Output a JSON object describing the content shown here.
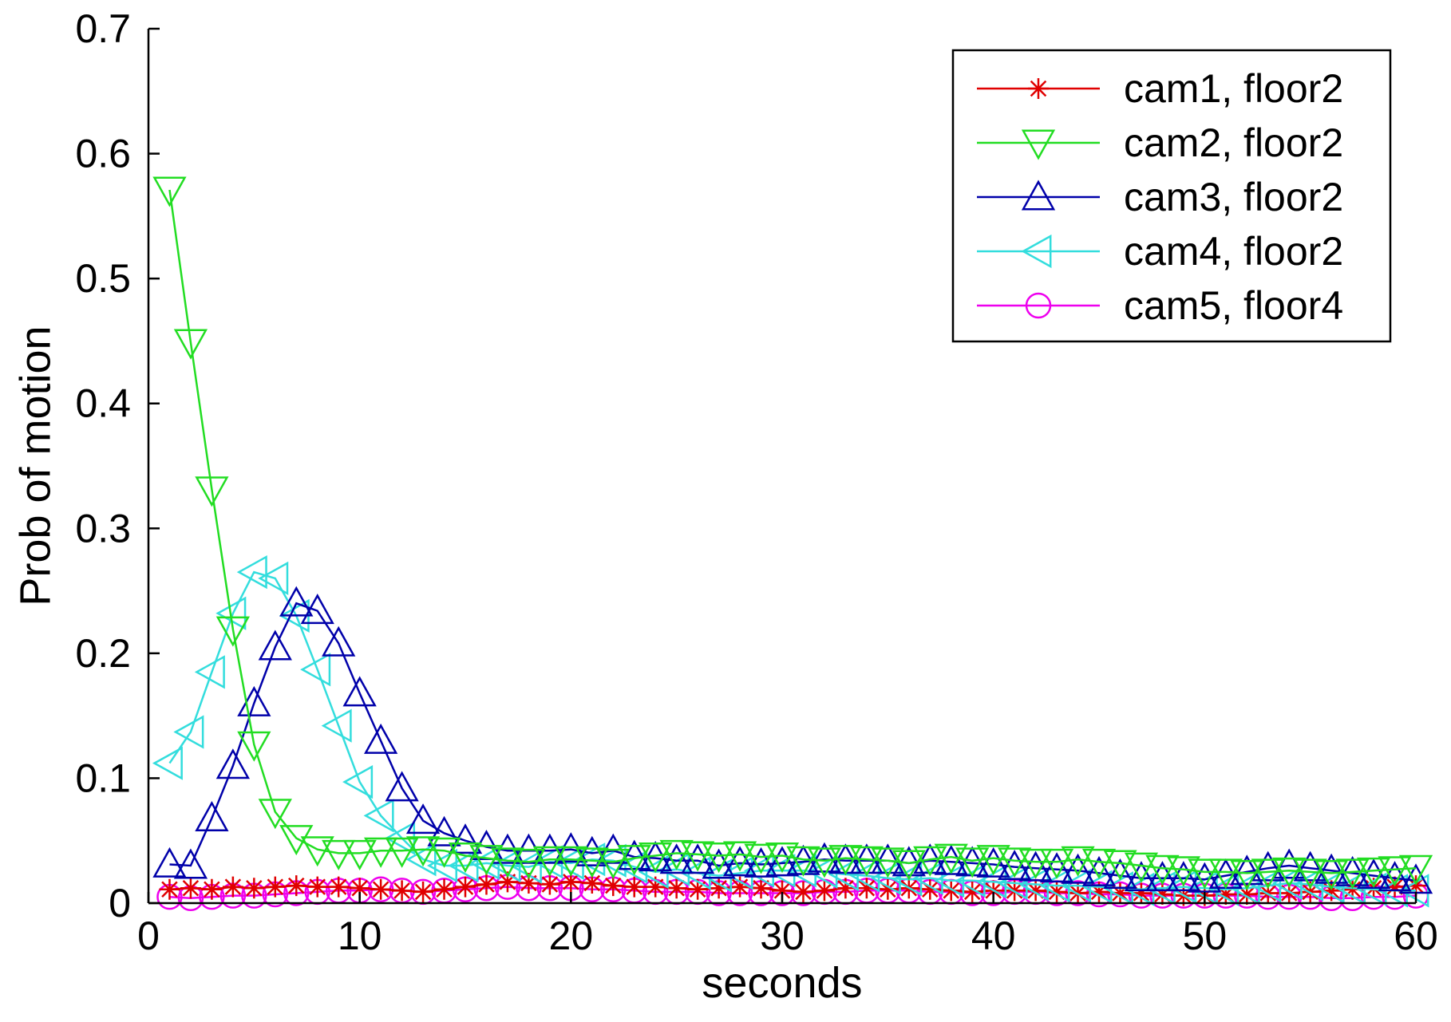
{
  "chart_data": {
    "type": "line",
    "title": "",
    "xlabel": "seconds",
    "ylabel": "Prob of motion",
    "xlim": [
      0,
      60
    ],
    "ylim": [
      0,
      0.7
    ],
    "xticks": [
      0,
      10,
      20,
      30,
      40,
      50,
      60
    ],
    "yticks": [
      0,
      0.1,
      0.2,
      0.3,
      0.4,
      0.5,
      0.6,
      0.7
    ],
    "xtick_labels": [
      "0",
      "10",
      "20",
      "30",
      "40",
      "50",
      "60"
    ],
    "ytick_labels": [
      "0",
      "0.1",
      "0.2",
      "0.3",
      "0.4",
      "0.5",
      "0.6",
      "0.7"
    ],
    "grid": false,
    "legend_position": "top-right",
    "x": [
      1,
      2,
      3,
      4,
      5,
      6,
      7,
      8,
      9,
      10,
      11,
      12,
      13,
      14,
      15,
      16,
      17,
      18,
      19,
      20,
      21,
      22,
      23,
      24,
      25,
      26,
      27,
      28,
      29,
      30,
      31,
      32,
      33,
      34,
      35,
      36,
      37,
      38,
      39,
      40,
      41,
      42,
      43,
      44,
      45,
      46,
      47,
      48,
      49,
      50,
      51,
      52,
      53,
      54,
      55,
      56,
      57,
      58,
      59,
      60
    ],
    "series": [
      {
        "name": "cam1, floor2",
        "color": "#e00000",
        "marker": "asterisk",
        "values": [
          0.011,
          0.012,
          0.011,
          0.013,
          0.012,
          0.013,
          0.014,
          0.013,
          0.013,
          0.012,
          0.011,
          0.01,
          0.009,
          0.011,
          0.013,
          0.015,
          0.017,
          0.016,
          0.015,
          0.017,
          0.016,
          0.014,
          0.013,
          0.013,
          0.012,
          0.011,
          0.012,
          0.013,
          0.012,
          0.01,
          0.009,
          0.01,
          0.012,
          0.012,
          0.011,
          0.012,
          0.011,
          0.01,
          0.009,
          0.01,
          0.01,
          0.01,
          0.009,
          0.008,
          0.009,
          0.008,
          0.008,
          0.007,
          0.006,
          0.006,
          0.007,
          0.007,
          0.008,
          0.008,
          0.009,
          0.01,
          0.011,
          0.012,
          0.013,
          0.014
        ]
      },
      {
        "name": "cam2, floor2",
        "color": "#22dd22",
        "marker": "triangle-down",
        "values": [
          0.571,
          0.449,
          0.331,
          0.219,
          0.127,
          0.073,
          0.052,
          0.043,
          0.04,
          0.04,
          0.042,
          0.042,
          0.043,
          0.042,
          0.038,
          0.036,
          0.034,
          0.033,
          0.035,
          0.035,
          0.034,
          0.033,
          0.036,
          0.038,
          0.04,
          0.039,
          0.038,
          0.039,
          0.037,
          0.038,
          0.035,
          0.034,
          0.036,
          0.035,
          0.034,
          0.032,
          0.035,
          0.037,
          0.034,
          0.036,
          0.034,
          0.033,
          0.033,
          0.035,
          0.033,
          0.032,
          0.03,
          0.028,
          0.027,
          0.025,
          0.025,
          0.024,
          0.025,
          0.026,
          0.025,
          0.024,
          0.025,
          0.026,
          0.027,
          0.028
        ]
      },
      {
        "name": "cam3, floor2",
        "color": "#0000aa",
        "marker": "triangle-up",
        "values": [
          0.031,
          0.03,
          0.068,
          0.11,
          0.16,
          0.205,
          0.24,
          0.234,
          0.208,
          0.168,
          0.13,
          0.092,
          0.066,
          0.056,
          0.05,
          0.045,
          0.042,
          0.042,
          0.042,
          0.043,
          0.04,
          0.042,
          0.037,
          0.036,
          0.034,
          0.034,
          0.03,
          0.032,
          0.031,
          0.032,
          0.033,
          0.035,
          0.034,
          0.034,
          0.034,
          0.032,
          0.034,
          0.033,
          0.032,
          0.031,
          0.029,
          0.028,
          0.027,
          0.026,
          0.024,
          0.022,
          0.02,
          0.02,
          0.02,
          0.019,
          0.022,
          0.025,
          0.028,
          0.03,
          0.028,
          0.026,
          0.024,
          0.022,
          0.02,
          0.018
        ]
      },
      {
        "name": "cam4, floor2",
        "color": "#33dddd",
        "marker": "triangle-left",
        "values": [
          0.112,
          0.137,
          0.185,
          0.232,
          0.265,
          0.26,
          0.23,
          0.187,
          0.142,
          0.097,
          0.07,
          0.052,
          0.035,
          0.03,
          0.03,
          0.032,
          0.03,
          0.029,
          0.033,
          0.032,
          0.035,
          0.034,
          0.029,
          0.025,
          0.027,
          0.024,
          0.022,
          0.024,
          0.026,
          0.026,
          0.026,
          0.025,
          0.023,
          0.022,
          0.02,
          0.019,
          0.02,
          0.018,
          0.018,
          0.017,
          0.016,
          0.015,
          0.014,
          0.014,
          0.013,
          0.012,
          0.011,
          0.012,
          0.013,
          0.012,
          0.011,
          0.012,
          0.014,
          0.016,
          0.015,
          0.013,
          0.012,
          0.011,
          0.01,
          0.01
        ]
      },
      {
        "name": "cam5, floor4",
        "color": "#ee00ee",
        "marker": "circle",
        "values": [
          0.005,
          0.004,
          0.005,
          0.006,
          0.006,
          0.007,
          0.008,
          0.009,
          0.01,
          0.01,
          0.011,
          0.01,
          0.009,
          0.01,
          0.011,
          0.012,
          0.013,
          0.012,
          0.012,
          0.012,
          0.011,
          0.011,
          0.01,
          0.009,
          0.009,
          0.009,
          0.008,
          0.008,
          0.008,
          0.008,
          0.008,
          0.009,
          0.009,
          0.01,
          0.01,
          0.01,
          0.009,
          0.009,
          0.008,
          0.008,
          0.009,
          0.009,
          0.008,
          0.008,
          0.007,
          0.007,
          0.006,
          0.006,
          0.006,
          0.006,
          0.006,
          0.006,
          0.005,
          0.005,
          0.005,
          0.004,
          0.004,
          0.005,
          0.005,
          0.006
        ]
      }
    ]
  }
}
